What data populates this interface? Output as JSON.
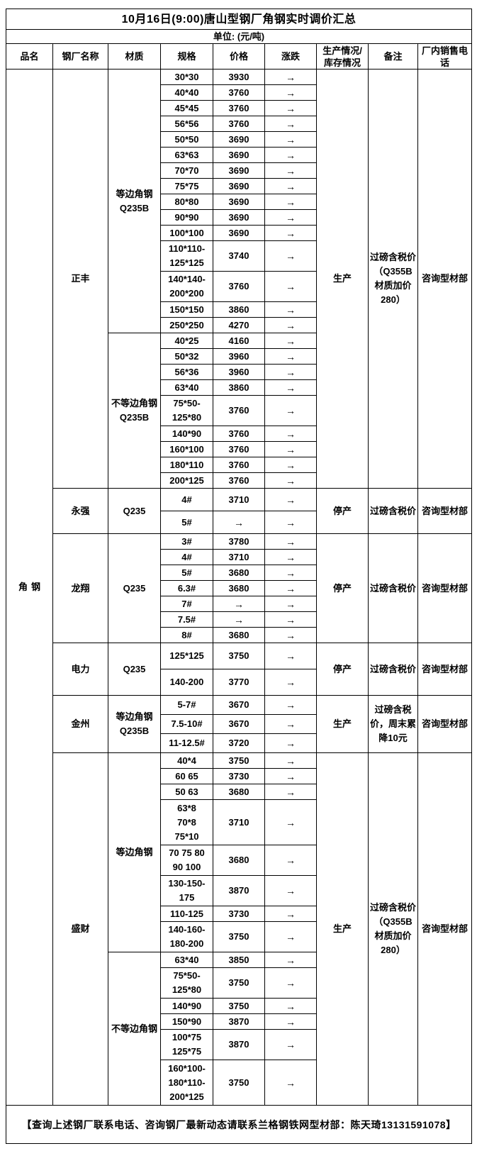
{
  "title": "10月16日(9:00)唐山型钢厂角钢实时调价汇总",
  "unit": "单位: (元/吨)",
  "columns": [
    "品名",
    "钢厂名称",
    "材质",
    "规格",
    "价格",
    "涨跌",
    "生产情况/\n库存情况",
    "备注",
    "厂内销售电话"
  ],
  "category": "角钢",
  "factories": [
    {
      "name": "正丰",
      "status": "生产",
      "remark": "过磅含税价（Q355B材质加价280）",
      "phone": "咨询型材部",
      "materials": [
        {
          "name": "等边角钢\nQ235B",
          "rows": [
            {
              "spec": "30*30",
              "price": "3930",
              "trend": "→"
            },
            {
              "spec": "40*40",
              "price": "3760",
              "trend": "→"
            },
            {
              "spec": "45*45",
              "price": "3760",
              "trend": "→"
            },
            {
              "spec": "56*56",
              "price": "3760",
              "trend": "→"
            },
            {
              "spec": "50*50",
              "price": "3690",
              "trend": "→"
            },
            {
              "spec": "63*63",
              "price": "3690",
              "trend": "→"
            },
            {
              "spec": "70*70",
              "price": "3690",
              "trend": "→"
            },
            {
              "spec": "75*75",
              "price": "3690",
              "trend": "→"
            },
            {
              "spec": "80*80",
              "price": "3690",
              "trend": "→"
            },
            {
              "spec": "90*90",
              "price": "3690",
              "trend": "→"
            },
            {
              "spec": "100*100",
              "price": "3690",
              "trend": "→"
            },
            {
              "spec": "110*110-\n125*125",
              "price": "3740",
              "trend": "→"
            },
            {
              "spec": "140*140-\n200*200",
              "price": "3760",
              "trend": "→"
            },
            {
              "spec": "150*150",
              "price": "3860",
              "trend": "→"
            },
            {
              "spec": "250*250",
              "price": "4270",
              "trend": "→"
            }
          ]
        },
        {
          "name": "不等边角钢\nQ235B",
          "rows": [
            {
              "spec": "40*25",
              "price": "4160",
              "trend": "→"
            },
            {
              "spec": "50*32",
              "price": "3960",
              "trend": "→"
            },
            {
              "spec": "56*36",
              "price": "3960",
              "trend": "→"
            },
            {
              "spec": "63*40",
              "price": "3860",
              "trend": "→"
            },
            {
              "spec": "75*50-\n125*80",
              "price": "3760",
              "trend": "→"
            },
            {
              "spec": "140*90",
              "price": "3760",
              "trend": "→"
            },
            {
              "spec": "160*100",
              "price": "3760",
              "trend": "→"
            },
            {
              "spec": "180*110",
              "price": "3760",
              "trend": "→"
            },
            {
              "spec": "200*125",
              "price": "3760",
              "trend": "→"
            }
          ]
        }
      ]
    },
    {
      "name": "永强",
      "status": "停产",
      "remark": "过磅含税价",
      "phone": "咨询型材部",
      "materials": [
        {
          "name": "Q235",
          "rows": [
            {
              "spec": "4#",
              "price": "3710",
              "trend": "→"
            },
            {
              "spec": "5#",
              "price": "→",
              "trend": "→"
            }
          ]
        }
      ]
    },
    {
      "name": "龙翔",
      "status": "停产",
      "remark": "过磅含税价",
      "phone": "咨询型材部",
      "materials": [
        {
          "name": "Q235",
          "rows": [
            {
              "spec": "3#",
              "price": "3780",
              "trend": "→"
            },
            {
              "spec": "4#",
              "price": "3710",
              "trend": "→"
            },
            {
              "spec": "5#",
              "price": "3680",
              "trend": "→"
            },
            {
              "spec": "6.3#",
              "price": "3680",
              "trend": "→"
            },
            {
              "spec": "7#",
              "price": "→",
              "trend": "→"
            },
            {
              "spec": "7.5#",
              "price": "→",
              "trend": "→"
            },
            {
              "spec": "8#",
              "price": "3680",
              "trend": "→"
            }
          ]
        }
      ]
    },
    {
      "name": "电力",
      "status": "停产",
      "remark": "过磅含税价",
      "phone": "咨询型材部",
      "materials": [
        {
          "name": "Q235",
          "rows": [
            {
              "spec": "125*125",
              "price": "3750",
              "trend": "→"
            },
            {
              "spec": "140-200",
              "price": "3770",
              "trend": "→"
            }
          ]
        }
      ]
    },
    {
      "name": "金州",
      "status": "生产",
      "remark": "过磅含税价，周末累降10元",
      "phone": "咨询型材部",
      "materials": [
        {
          "name": "等边角钢\nQ235B",
          "rows": [
            {
              "spec": "5-7#",
              "price": "3670",
              "trend": "→"
            },
            {
              "spec": "7.5-10#",
              "price": "3670",
              "trend": "→"
            },
            {
              "spec": "11-12.5#",
              "price": "3720",
              "trend": "→"
            }
          ]
        }
      ]
    },
    {
      "name": "盛财",
      "status": "生产",
      "remark": "过磅含税价（Q355B材质加价280）",
      "phone": "咨询型材部",
      "materials": [
        {
          "name": "等边角钢",
          "rows": [
            {
              "spec": "40*4",
              "price": "3750",
              "trend": "→"
            },
            {
              "spec": "60 65",
              "price": "3730",
              "trend": "→"
            },
            {
              "spec": "50 63",
              "price": "3680",
              "trend": "→"
            },
            {
              "spec": "63*8\n70*8\n75*10",
              "price": "3710",
              "trend": "→"
            },
            {
              "spec": "70 75 80\n90 100",
              "price": "3680",
              "trend": "→"
            },
            {
              "spec": "130-150-\n175",
              "price": "3870",
              "trend": "→"
            },
            {
              "spec": "110-125",
              "price": "3730",
              "trend": "→"
            },
            {
              "spec": "140-160-\n180-200",
              "price": "3750",
              "trend": "→"
            }
          ]
        },
        {
          "name": "不等边角钢",
          "rows": [
            {
              "spec": "63*40",
              "price": "3850",
              "trend": "→"
            },
            {
              "spec": "75*50-\n125*80",
              "price": "3750",
              "trend": "→"
            },
            {
              "spec": "140*90",
              "price": "3750",
              "trend": "→"
            },
            {
              "spec": "150*90",
              "price": "3870",
              "trend": "→"
            },
            {
              "spec": "100*75\n125*75",
              "price": "3870",
              "trend": "→"
            },
            {
              "spec": "160*100-\n180*110-\n200*125",
              "price": "3750",
              "trend": "→"
            }
          ]
        }
      ]
    }
  ],
  "footer": "【查询上述钢厂联系电话、咨询钢厂最新动态请联系兰格钢铁网型材部：陈天琦13131591078】"
}
